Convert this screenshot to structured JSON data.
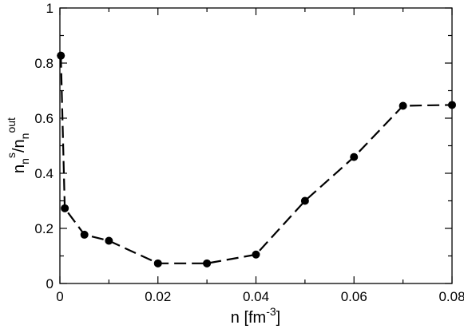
{
  "chart_data": {
    "type": "line",
    "xlabel": {
      "base": "n [fm",
      "sup": "-3",
      "close": "]"
    },
    "ylabel": {
      "n1": "n",
      "sub1": "n",
      "sup1": "s",
      "slash": "/n",
      "sub2": "n",
      "sup2": "out"
    },
    "xlim": [
      0,
      0.08
    ],
    "ylim": [
      0,
      1
    ],
    "xticks": [
      "0",
      "0.02",
      "0.04",
      "0.06",
      "0.08"
    ],
    "yticks": [
      "0",
      "0.2",
      "0.4",
      "0.6",
      "0.8",
      "1"
    ],
    "series": [
      {
        "x": [
          0.0002,
          0.001,
          0.005,
          0.01,
          0.02,
          0.03,
          0.04,
          0.05,
          0.06,
          0.07,
          0.08
        ],
        "y": [
          0.827,
          0.273,
          0.177,
          0.155,
          0.073,
          0.073,
          0.105,
          0.3,
          0.459,
          0.645,
          0.648
        ]
      }
    ],
    "style": {
      "line": "dashed",
      "marker": "filled-circle",
      "color": "#000000"
    }
  }
}
